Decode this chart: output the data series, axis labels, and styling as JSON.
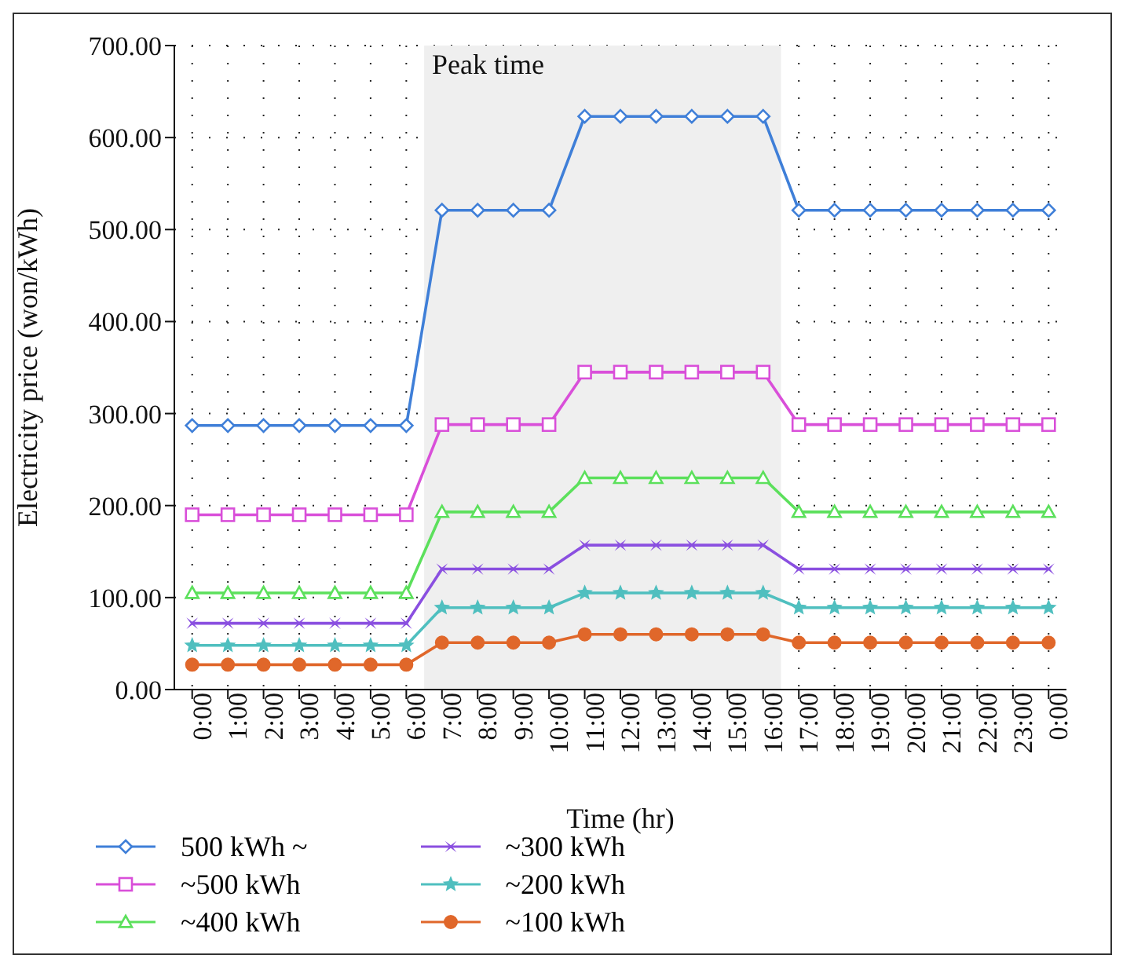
{
  "chart_data": {
    "type": "line",
    "xlabel": "Time (hr)",
    "ylabel": "Electricity price (won/kWh)",
    "categories": [
      "0:00",
      "1:00",
      "2:00",
      "3:00",
      "4:00",
      "5:00",
      "6:00",
      "7:00",
      "8:00",
      "9:00",
      "10:00",
      "11:00",
      "12:00",
      "13:00",
      "14:00",
      "15:00",
      "16:00",
      "17:00",
      "18:00",
      "19:00",
      "20:00",
      "21:00",
      "22:00",
      "23:00",
      "0:00"
    ],
    "series": [
      {
        "name": "500 kWh ~",
        "color": "#3f7fd8",
        "marker": "diamond",
        "values": [
          287,
          287,
          287,
          287,
          287,
          287,
          287,
          521,
          521,
          521,
          521,
          623,
          623,
          623,
          623,
          623,
          623,
          521,
          521,
          521,
          521,
          521,
          521,
          521,
          521
        ]
      },
      {
        "name": "~500 kWh",
        "color": "#d94fd9",
        "marker": "square",
        "values": [
          190,
          190,
          190,
          190,
          190,
          190,
          190,
          288,
          288,
          288,
          288,
          345,
          345,
          345,
          345,
          345,
          345,
          288,
          288,
          288,
          288,
          288,
          288,
          288,
          288
        ]
      },
      {
        "name": "~400 kWh",
        "color": "#5ce05c",
        "marker": "triangle",
        "values": [
          105,
          105,
          105,
          105,
          105,
          105,
          105,
          193,
          193,
          193,
          193,
          230,
          230,
          230,
          230,
          230,
          230,
          193,
          193,
          193,
          193,
          193,
          193,
          193,
          193
        ]
      },
      {
        "name": "~300 kWh",
        "color": "#8a4fe0",
        "marker": "cross",
        "values": [
          72,
          72,
          72,
          72,
          72,
          72,
          72,
          131,
          131,
          131,
          131,
          157,
          157,
          157,
          157,
          157,
          157,
          131,
          131,
          131,
          131,
          131,
          131,
          131,
          131
        ]
      },
      {
        "name": "~200 kWh",
        "color": "#4fbfbf",
        "marker": "star",
        "values": [
          48,
          48,
          48,
          48,
          48,
          48,
          48,
          89,
          89,
          89,
          89,
          105,
          105,
          105,
          105,
          105,
          105,
          89,
          89,
          89,
          89,
          89,
          89,
          89,
          89
        ]
      },
      {
        "name": "~100 kWh",
        "color": "#e0672a",
        "marker": "circle",
        "values": [
          27,
          27,
          27,
          27,
          27,
          27,
          27,
          51,
          51,
          51,
          51,
          60,
          60,
          60,
          60,
          60,
          60,
          51,
          51,
          51,
          51,
          51,
          51,
          51,
          51
        ]
      }
    ],
    "ylim": [
      0,
      700
    ],
    "yticks": [
      {
        "value": 0,
        "label": "0.00"
      },
      {
        "value": 100,
        "label": "100.00"
      },
      {
        "value": 200,
        "label": "200.00"
      },
      {
        "value": 300,
        "label": "300.00"
      },
      {
        "value": 400,
        "label": "400.00"
      },
      {
        "value": 500,
        "label": "500.00"
      },
      {
        "value": 600,
        "label": "600.00"
      },
      {
        "value": 700,
        "label": "700.00"
      }
    ],
    "bands": [
      {
        "axis": "x",
        "from": "7:00",
        "to": "16:00",
        "label": "Peak time",
        "color": "#efefef"
      }
    ],
    "grid": true,
    "legend": "bottom",
    "line_style": "solid"
  }
}
